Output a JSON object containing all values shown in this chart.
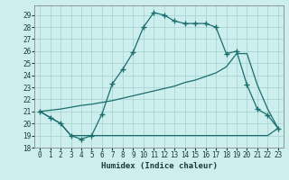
{
  "xlabel": "Humidex (Indice chaleur)",
  "bg_color": "#cceeed",
  "grid_color": "#aad4d4",
  "line_color": "#1a6e6e",
  "xlim": [
    -0.5,
    23.5
  ],
  "ylim": [
    18,
    29.8
  ],
  "yticks": [
    18,
    19,
    20,
    21,
    22,
    23,
    24,
    25,
    26,
    27,
    28,
    29
  ],
  "xticks": [
    0,
    1,
    2,
    3,
    4,
    5,
    6,
    7,
    8,
    9,
    10,
    11,
    12,
    13,
    14,
    15,
    16,
    17,
    18,
    19,
    20,
    21,
    22,
    23
  ],
  "line1_x": [
    0,
    1,
    2,
    3,
    4,
    5,
    6,
    7,
    8,
    9,
    10,
    11,
    12,
    13,
    14,
    15,
    16,
    17,
    18,
    19,
    20,
    21,
    22,
    23
  ],
  "line1_y": [
    21.0,
    20.5,
    20.0,
    19.0,
    18.7,
    19.0,
    20.8,
    23.3,
    24.5,
    25.9,
    28.0,
    29.2,
    29.0,
    28.5,
    28.3,
    28.3,
    28.3,
    28.0,
    25.8,
    26.0,
    23.2,
    21.2,
    20.7,
    19.6
  ],
  "line2_x": [
    0,
    1,
    2,
    3,
    4,
    5,
    6,
    7,
    8,
    9,
    10,
    11,
    12,
    13,
    14,
    15,
    16,
    17,
    18,
    19,
    20,
    21,
    22,
    23
  ],
  "line2_y": [
    21.0,
    21.1,
    21.2,
    21.35,
    21.5,
    21.6,
    21.75,
    21.9,
    22.1,
    22.3,
    22.5,
    22.7,
    22.9,
    23.1,
    23.4,
    23.6,
    23.9,
    24.2,
    24.7,
    25.8,
    25.8,
    23.2,
    21.2,
    19.6
  ],
  "line3_x": [
    0,
    1,
    2,
    3,
    4,
    5,
    6,
    7,
    8,
    9,
    10,
    11,
    12,
    13,
    14,
    15,
    16,
    17,
    18,
    19,
    20,
    21,
    22,
    23
  ],
  "line3_y": [
    21.0,
    20.5,
    20.0,
    19.0,
    19.0,
    19.0,
    19.0,
    19.0,
    19.0,
    19.0,
    19.0,
    19.0,
    19.0,
    19.0,
    19.0,
    19.0,
    19.0,
    19.0,
    19.0,
    19.0,
    19.0,
    19.0,
    19.0,
    19.6
  ]
}
